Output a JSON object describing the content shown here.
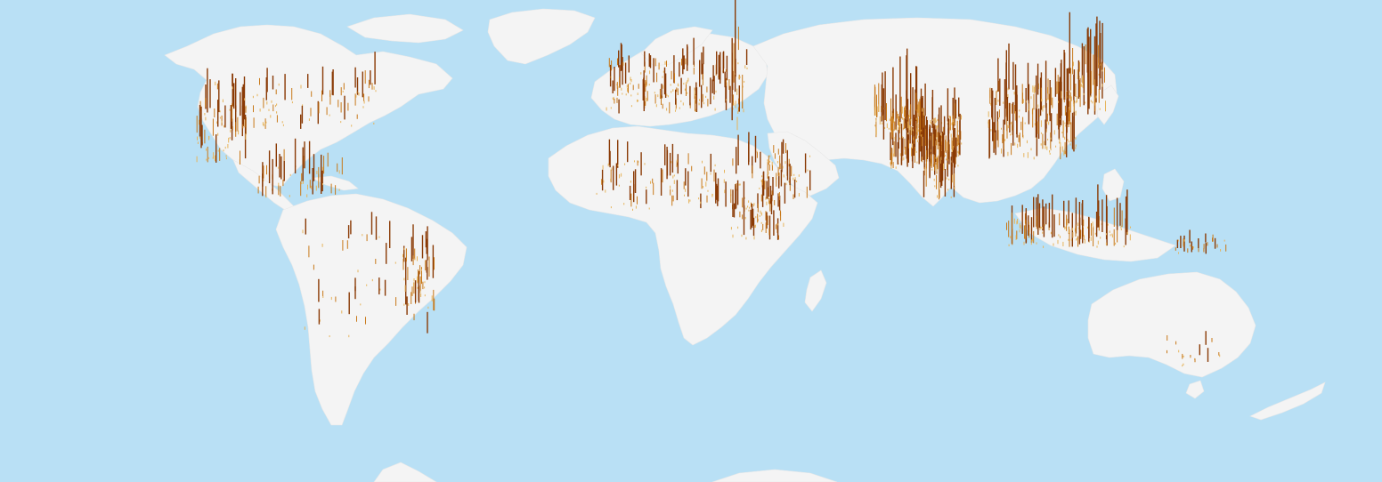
{
  "map": {
    "projection": "equirectangular",
    "style": "3D spike map",
    "colors": {
      "ocean": "#b9e0f5",
      "land": "#f4f4f4",
      "spike_low": "#e6b45c",
      "spike_mid": "#c87818",
      "spike_high": "#8a3a05"
    }
  }
}
